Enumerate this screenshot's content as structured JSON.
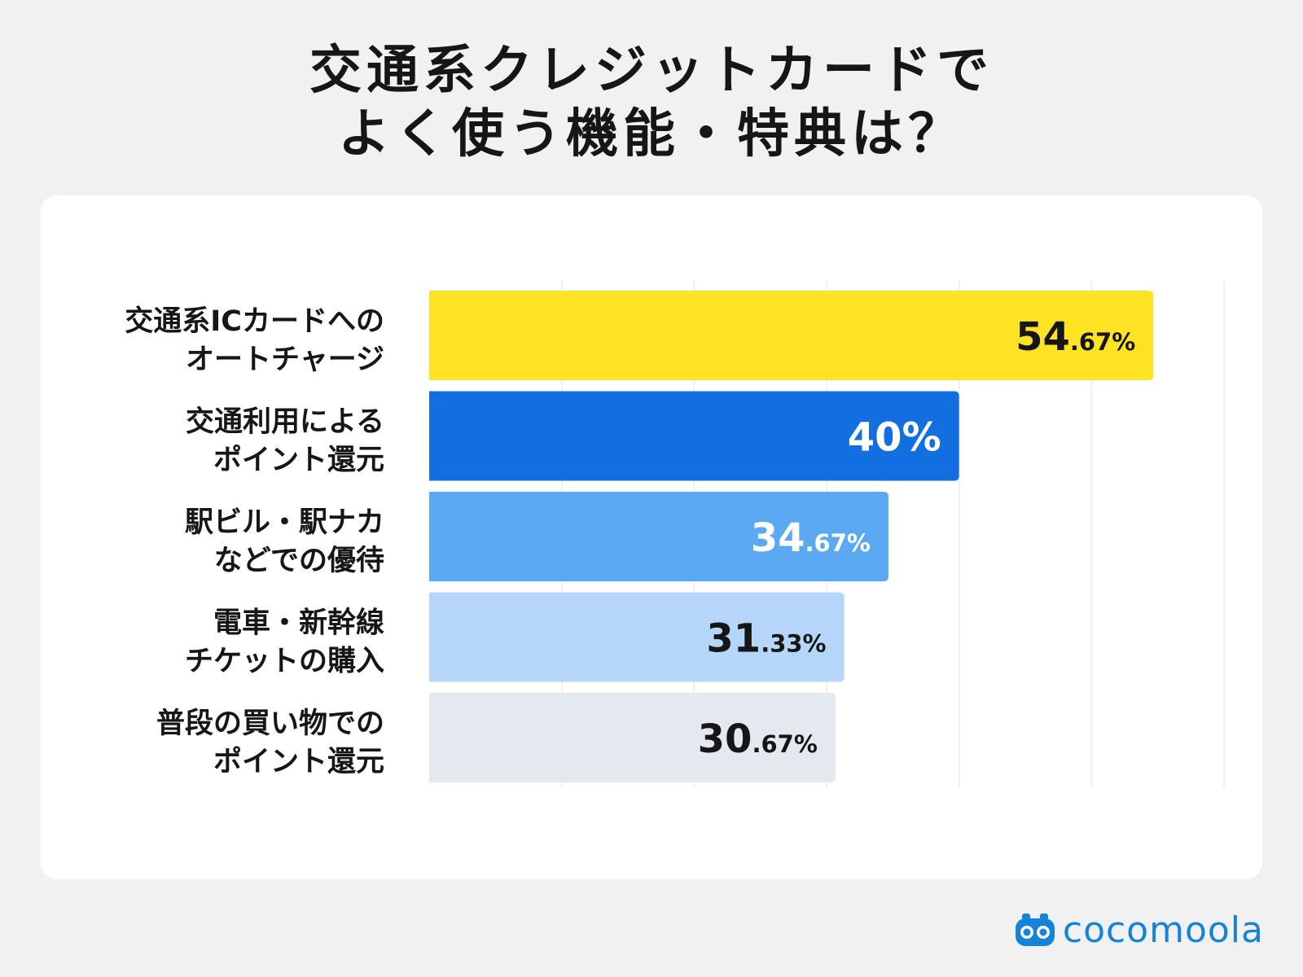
{
  "title": {
    "line1": "交通系クレジットカードで",
    "line2": "よく使う機能・特典は？"
  },
  "chart_data": {
    "type": "bar",
    "orientation": "horizontal",
    "title": "交通系クレジットカードで よく使う機能・特典は？",
    "xlim": [
      0,
      60
    ],
    "grid": true,
    "unit": "%",
    "categories": [
      [
        "交通系ICカードへの",
        "オートチャージ"
      ],
      [
        "交通利用による",
        "ポイント還元"
      ],
      [
        "駅ビル・駅ナカ",
        "などでの優待"
      ],
      [
        "電車・新幹線",
        "チケットの購入"
      ],
      [
        "普段の買い物での",
        "ポイント還元"
      ]
    ],
    "values": [
      54.67,
      40,
      34.67,
      31.33,
      30.67
    ],
    "value_labels": [
      {
        "int": "54",
        "dec": ".67%"
      },
      {
        "int": "40%",
        "dec": ""
      },
      {
        "int": "34",
        "dec": ".67%"
      },
      {
        "int": "31",
        "dec": ".33%"
      },
      {
        "int": "30",
        "dec": ".67%"
      }
    ],
    "colors": [
      "#fde324",
      "#136fe0",
      "#5ba9f2",
      "#b5d6f8",
      "#e4e8ef"
    ],
    "label_colors": [
      "#161616",
      "#ffffff",
      "#ffffff",
      "#161616",
      "#161616"
    ]
  },
  "brand": {
    "name": "cocomoola",
    "color": "#1583d8"
  }
}
